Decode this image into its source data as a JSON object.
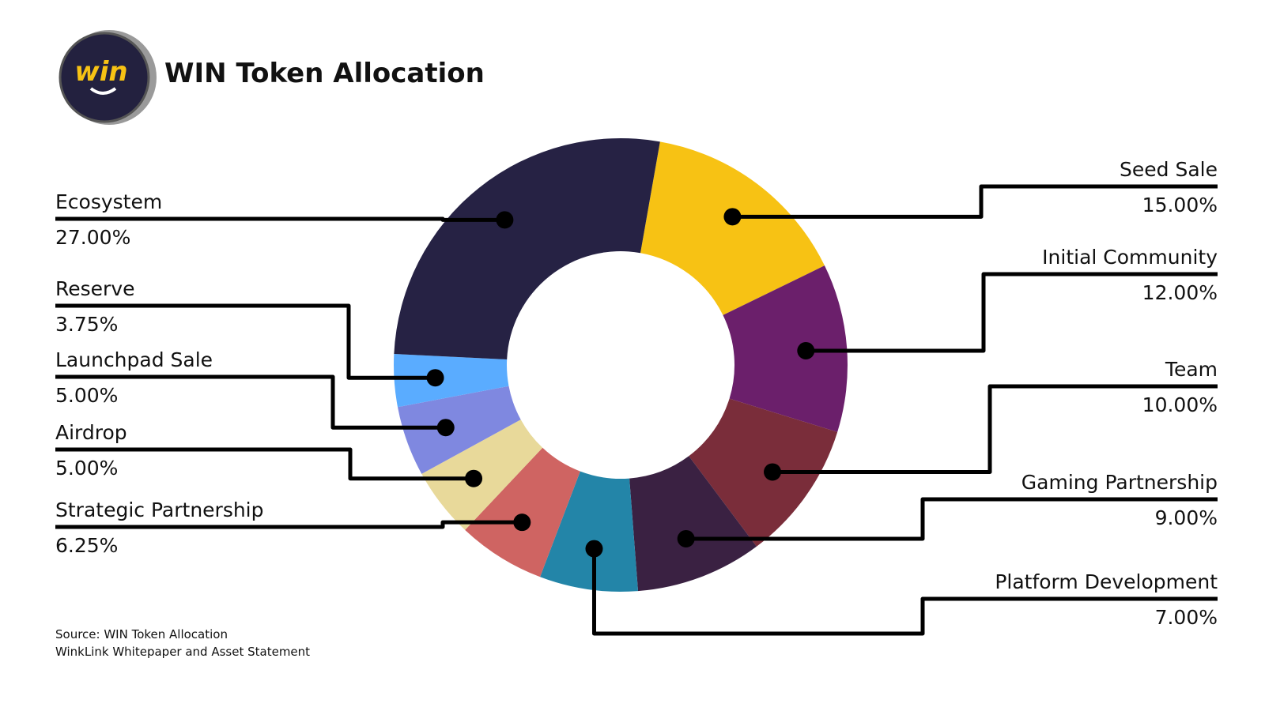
{
  "chart_data": {
    "type": "donut",
    "title": "WIN Token Allocation",
    "logo_text": "win",
    "categories": [
      "Seed Sale",
      "Initial Community",
      "Team",
      "Gaming Partnership",
      "Platform Development",
      "Strategic Partnership",
      "Airdrop",
      "Launchpad Sale",
      "Reserve",
      "Ecosystem"
    ],
    "values": [
      15,
      12,
      10,
      9,
      7,
      6.25,
      5,
      5,
      3.75,
      27
    ],
    "value_labels": [
      "15.00%",
      "12.00%",
      "10.00%",
      "9.00%",
      "7.00%",
      "6.25%",
      "5.00%",
      "5.00%",
      "3.75%",
      "27.00%"
    ],
    "colors": [
      "#f7c214",
      "#6b1f6b",
      "#7a2d3a",
      "#3a2142",
      "#2385a8",
      "#cf6462",
      "#e8d99a",
      "#7f88e0",
      "#5aacff",
      "#262244"
    ],
    "source": [
      "Source: WIN Token Allocation",
      "WinkLink Whitepaper and Asset Statement"
    ]
  }
}
